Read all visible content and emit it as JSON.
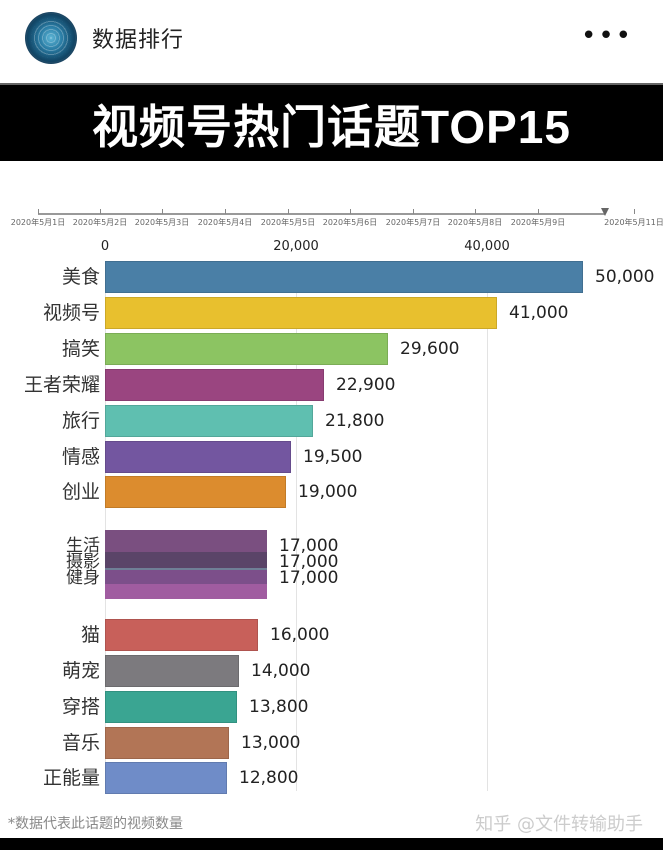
{
  "header": {
    "account_name": "数据排行",
    "more_icon": "•••"
  },
  "title": "视频号热门话题TOP15",
  "timeline": {
    "labels": [
      "2020年5月1日",
      "2020年5月2日",
      "2020年5月3日",
      "2020年5月4日",
      "2020年5月5日",
      "2020年5月6日",
      "2020年5月7日",
      "2020年5月8日",
      "2020年5月9日",
      "2020年5月11日"
    ]
  },
  "axis": {
    "ticks": [
      "0",
      "20,000",
      "40,000"
    ]
  },
  "rows": [
    {
      "label": "美食",
      "value_text": "50,000",
      "color": "#4a7fa6"
    },
    {
      "label": "视频号",
      "value_text": "41,000",
      "color": "#e8c02e"
    },
    {
      "label": "搞笑",
      "value_text": "29,600",
      "color": "#8cc462"
    },
    {
      "label": "王者荣耀",
      "value_text": "22,900",
      "color": "#9a4580"
    },
    {
      "label": "旅行",
      "value_text": "21,800",
      "color": "#5fbfb0"
    },
    {
      "label": "情感",
      "value_text": "19,500",
      "color": "#7356a0"
    },
    {
      "label": "创业",
      "value_text": "19,000",
      "color": "#dc8c2e"
    }
  ],
  "cluster": [
    {
      "label": "生活",
      "value_text": "17,000",
      "color": "#7a4f80"
    },
    {
      "label": "摄影",
      "value_text": "17,000",
      "color": "#5a4468"
    },
    {
      "label": "健身",
      "value_text": "17,000",
      "color": "#a05ca0"
    }
  ],
  "rows_bottom": [
    {
      "label": "猫",
      "value_text": "16,000",
      "color": "#c8605a"
    },
    {
      "label": "萌宠",
      "value_text": "14,000",
      "color": "#7c7a7e"
    },
    {
      "label": "穿搭",
      "value_text": "13,800",
      "color": "#3aa592"
    },
    {
      "label": "音乐",
      "value_text": "13,000",
      "color": "#b27556"
    },
    {
      "label": "正能量",
      "value_text": "12,800",
      "color": "#6f8cc8"
    }
  ],
  "footnote": "*数据代表此话题的视频数量",
  "watermark": "知乎 @文件转输助手",
  "chart_data": {
    "type": "bar",
    "orientation": "horizontal",
    "title": "视频号热门话题TOP15",
    "categories": [
      "美食",
      "视频号",
      "搞笑",
      "王者荣耀",
      "旅行",
      "情感",
      "创业",
      "生活",
      "摄影",
      "健身",
      "猫",
      "萌宠",
      "穿搭",
      "音乐",
      "正能量"
    ],
    "values": [
      50000,
      41000,
      29600,
      22900,
      21800,
      19500,
      19000,
      17000,
      17000,
      17000,
      16000,
      14000,
      13800,
      13000,
      12800
    ],
    "colors": [
      "#4a7fa6",
      "#e8c02e",
      "#8cc462",
      "#9a4580",
      "#5fbfb0",
      "#7356a0",
      "#dc8c2e",
      "#7a4f80",
      "#5a4468",
      "#a05ca0",
      "#c8605a",
      "#7c7a7e",
      "#3aa592",
      "#b27556",
      "#6f8cc8"
    ],
    "xlabel": "",
    "ylabel": "",
    "xticks": [
      0,
      20000,
      40000
    ],
    "xlim": [
      0,
      52000
    ],
    "grid": true,
    "annotation": "*数据代表此话题的视频数量",
    "timeline_date_range": [
      "2020年5月1日",
      "2020年5月11日"
    ]
  }
}
